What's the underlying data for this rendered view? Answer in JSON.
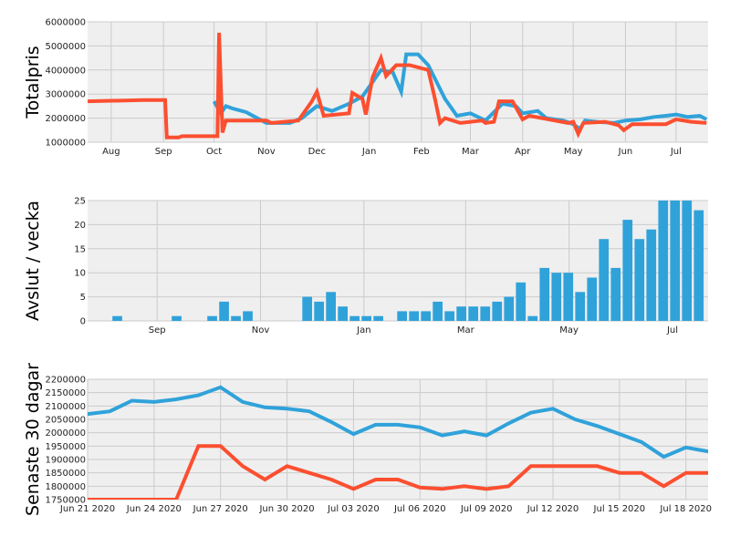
{
  "chart_data": [
    {
      "type": "line",
      "ylabel": "Totalpris",
      "ylim": [
        1000000,
        6000000
      ],
      "yticks": [
        "1000000",
        "2000000",
        "3000000",
        "4000000",
        "5000000",
        "6000000"
      ],
      "xlim": [
        "2019-07-18",
        "2020-07-20"
      ],
      "xtick_labels": [
        {
          "date": "2019-08-01",
          "label": "Aug"
        },
        {
          "date": "2019-09-01",
          "label": "Sep"
        },
        {
          "date": "2019-10-01",
          "label": "Oct"
        },
        {
          "date": "2019-11-01",
          "label": "Nov"
        },
        {
          "date": "2019-12-01",
          "label": "Dec"
        },
        {
          "date": "2020-01-01",
          "label": "Jan"
        },
        {
          "date": "2020-02-01",
          "label": "Feb"
        },
        {
          "date": "2020-03-01",
          "label": "Mar"
        },
        {
          "date": "2020-04-01",
          "label": "Apr"
        },
        {
          "date": "2020-05-01",
          "label": "May"
        },
        {
          "date": "2020-06-01",
          "label": "Jun"
        },
        {
          "date": "2020-07-01",
          "label": "Jul"
        }
      ],
      "series": [
        {
          "color": "#30a2da",
          "points": [
            [
              "2019-10-01",
              2700000
            ],
            [
              "2019-10-05",
              2200000
            ],
            [
              "2019-10-08",
              2500000
            ],
            [
              "2019-10-12",
              2400000
            ],
            [
              "2019-10-20",
              2250000
            ],
            [
              "2019-11-01",
              1800000
            ],
            [
              "2019-11-15",
              1800000
            ],
            [
              "2019-11-22",
              2000000
            ],
            [
              "2019-12-01",
              2500000
            ],
            [
              "2019-12-10",
              2300000
            ],
            [
              "2019-12-20",
              2600000
            ],
            [
              "2019-12-28",
              2900000
            ],
            [
              "2020-01-03",
              3500000
            ],
            [
              "2020-01-08",
              4000000
            ],
            [
              "2020-01-15",
              3900000
            ],
            [
              "2020-01-20",
              3100000
            ],
            [
              "2020-01-23",
              4650000
            ],
            [
              "2020-01-30",
              4650000
            ],
            [
              "2020-02-05",
              4200000
            ],
            [
              "2020-02-10",
              3500000
            ],
            [
              "2020-02-15",
              2800000
            ],
            [
              "2020-02-22",
              2100000
            ],
            [
              "2020-03-01",
              2200000
            ],
            [
              "2020-03-10",
              1900000
            ],
            [
              "2020-03-20",
              2600000
            ],
            [
              "2020-03-28",
              2500000
            ],
            [
              "2020-04-01",
              2200000
            ],
            [
              "2020-04-10",
              2300000
            ],
            [
              "2020-04-15",
              2000000
            ],
            [
              "2020-04-25",
              1900000
            ],
            [
              "2020-05-01",
              1750000
            ],
            [
              "2020-05-05",
              1550000
            ],
            [
              "2020-05-08",
              1900000
            ],
            [
              "2020-05-15",
              1850000
            ],
            [
              "2020-05-25",
              1800000
            ],
            [
              "2020-06-01",
              1900000
            ],
            [
              "2020-06-10",
              1950000
            ],
            [
              "2020-06-18",
              2050000
            ],
            [
              "2020-06-25",
              2100000
            ],
            [
              "2020-07-01",
              2150000
            ],
            [
              "2020-07-08",
              2050000
            ],
            [
              "2020-07-15",
              2100000
            ],
            [
              "2020-07-19",
              1950000
            ]
          ]
        },
        {
          "color": "#fc4f30",
          "points": [
            [
              "2019-07-18",
              2700000
            ],
            [
              "2019-08-20",
              2750000
            ],
            [
              "2019-09-02",
              2750000
            ],
            [
              "2019-09-03",
              1200000
            ],
            [
              "2019-09-10",
              1200000
            ],
            [
              "2019-09-12",
              1250000
            ],
            [
              "2019-10-03",
              1250000
            ],
            [
              "2019-10-04",
              5550000
            ],
            [
              "2019-10-06",
              1400000
            ],
            [
              "2019-10-08",
              1900000
            ],
            [
              "2019-11-01",
              1900000
            ],
            [
              "2019-11-04",
              1800000
            ],
            [
              "2019-11-20",
              1900000
            ],
            [
              "2019-11-28",
              2700000
            ],
            [
              "2019-12-01",
              3100000
            ],
            [
              "2019-12-05",
              2100000
            ],
            [
              "2019-12-20",
              2200000
            ],
            [
              "2019-12-22",
              3050000
            ],
            [
              "2019-12-28",
              2800000
            ],
            [
              "2019-12-30",
              2150000
            ],
            [
              "2020-01-03",
              3700000
            ],
            [
              "2020-01-08",
              4500000
            ],
            [
              "2020-01-11",
              3750000
            ],
            [
              "2020-01-17",
              4200000
            ],
            [
              "2020-01-25",
              4200000
            ],
            [
              "2020-02-05",
              4000000
            ],
            [
              "2020-02-09",
              2800000
            ],
            [
              "2020-02-12",
              1800000
            ],
            [
              "2020-02-15",
              2000000
            ],
            [
              "2020-02-24",
              1800000
            ],
            [
              "2020-03-08",
              1900000
            ],
            [
              "2020-03-10",
              1800000
            ],
            [
              "2020-03-15",
              1850000
            ],
            [
              "2020-03-18",
              2700000
            ],
            [
              "2020-03-26",
              2700000
            ],
            [
              "2020-04-01",
              1950000
            ],
            [
              "2020-04-05",
              2100000
            ],
            [
              "2020-04-20",
              1900000
            ],
            [
              "2020-04-28",
              1800000
            ],
            [
              "2020-05-01",
              1850000
            ],
            [
              "2020-05-04",
              1350000
            ],
            [
              "2020-05-07",
              1800000
            ],
            [
              "2020-05-20",
              1850000
            ],
            [
              "2020-05-28",
              1700000
            ],
            [
              "2020-05-31",
              1500000
            ],
            [
              "2020-06-05",
              1750000
            ],
            [
              "2020-06-25",
              1750000
            ],
            [
              "2020-07-01",
              1950000
            ],
            [
              "2020-07-10",
              1850000
            ],
            [
              "2020-07-19",
              1800000
            ]
          ]
        }
      ]
    },
    {
      "type": "bar",
      "ylabel": "Avslut / vecka",
      "ylim": [
        0,
        25
      ],
      "yticks": [
        "0",
        "5",
        "10",
        "15",
        "20",
        "25"
      ],
      "xlim": [
        "2019-07-22",
        "2020-07-22"
      ],
      "xtick_labels": [
        {
          "date": "2019-09-01",
          "label": "Sep"
        },
        {
          "date": "2019-11-01",
          "label": "Nov"
        },
        {
          "date": "2020-01-01",
          "label": "Jan"
        },
        {
          "date": "2020-03-01",
          "label": "Mar"
        },
        {
          "date": "2020-05-01",
          "label": "May"
        },
        {
          "date": "2020-07-01",
          "label": "Jul"
        }
      ],
      "bars": [
        [
          "2019-08-05",
          1
        ],
        [
          "2019-09-09",
          1
        ],
        [
          "2019-09-30",
          1
        ],
        [
          "2019-10-07",
          4
        ],
        [
          "2019-10-14",
          1
        ],
        [
          "2019-10-21",
          2
        ],
        [
          "2019-11-25",
          5
        ],
        [
          "2019-12-02",
          4
        ],
        [
          "2019-12-09",
          6
        ],
        [
          "2019-12-16",
          3
        ],
        [
          "2019-12-23",
          1
        ],
        [
          "2019-12-30",
          1
        ],
        [
          "2020-01-06",
          1
        ],
        [
          "2020-01-20",
          2
        ],
        [
          "2020-01-27",
          2
        ],
        [
          "2020-02-03",
          2
        ],
        [
          "2020-02-10",
          4
        ],
        [
          "2020-02-17",
          2
        ],
        [
          "2020-02-24",
          3
        ],
        [
          "2020-03-02",
          3
        ],
        [
          "2020-03-09",
          3
        ],
        [
          "2020-03-16",
          4
        ],
        [
          "2020-03-23",
          5
        ],
        [
          "2020-03-30",
          8
        ],
        [
          "2020-04-06",
          1
        ],
        [
          "2020-04-13",
          11
        ],
        [
          "2020-04-20",
          10
        ],
        [
          "2020-04-27",
          10
        ],
        [
          "2020-05-04",
          6
        ],
        [
          "2020-05-11",
          9
        ],
        [
          "2020-05-18",
          17
        ],
        [
          "2020-05-25",
          11
        ],
        [
          "2020-06-01",
          21
        ],
        [
          "2020-06-08",
          17
        ],
        [
          "2020-06-15",
          19
        ],
        [
          "2020-06-22",
          25
        ],
        [
          "2020-06-29",
          25
        ],
        [
          "2020-07-06",
          25
        ],
        [
          "2020-07-13",
          23
        ]
      ]
    },
    {
      "type": "line",
      "ylabel": "Senaste 30 dagar",
      "ylim": [
        1750000,
        2200000
      ],
      "yticks": [
        "1750000",
        "1800000",
        "1850000",
        "1900000",
        "1950000",
        "2000000",
        "2050000",
        "2100000",
        "2150000",
        "2200000"
      ],
      "xlim": [
        "2020-06-21",
        "2020-07-19"
      ],
      "xtick_labels": [
        {
          "date": "2020-06-21",
          "label": "Jun 21 2020"
        },
        {
          "date": "2020-06-24",
          "label": "Jun 24 2020"
        },
        {
          "date": "2020-06-27",
          "label": "Jun 27 2020"
        },
        {
          "date": "2020-06-30",
          "label": "Jun 30 2020"
        },
        {
          "date": "2020-07-03",
          "label": "Jul 03 2020"
        },
        {
          "date": "2020-07-06",
          "label": "Jul 06 2020"
        },
        {
          "date": "2020-07-09",
          "label": "Jul 09 2020"
        },
        {
          "date": "2020-07-12",
          "label": "Jul 12 2020"
        },
        {
          "date": "2020-07-15",
          "label": "Jul 15 2020"
        },
        {
          "date": "2020-07-18",
          "label": "Jul 18 2020"
        }
      ],
      "series": [
        {
          "color": "#30a2da",
          "points": [
            [
              "2020-06-21",
              2070000
            ],
            [
              "2020-06-22",
              2080000
            ],
            [
              "2020-06-23",
              2120000
            ],
            [
              "2020-06-24",
              2115000
            ],
            [
              "2020-06-25",
              2125000
            ],
            [
              "2020-06-26",
              2140000
            ],
            [
              "2020-06-27",
              2170000
            ],
            [
              "2020-06-28",
              2115000
            ],
            [
              "2020-06-29",
              2095000
            ],
            [
              "2020-06-30",
              2090000
            ],
            [
              "2020-07-01",
              2080000
            ],
            [
              "2020-07-02",
              2040000
            ],
            [
              "2020-07-03",
              1995000
            ],
            [
              "2020-07-04",
              2030000
            ],
            [
              "2020-07-05",
              2030000
            ],
            [
              "2020-07-06",
              2020000
            ],
            [
              "2020-07-07",
              1990000
            ],
            [
              "2020-07-08",
              2005000
            ],
            [
              "2020-07-09",
              1990000
            ],
            [
              "2020-07-10",
              2035000
            ],
            [
              "2020-07-11",
              2075000
            ],
            [
              "2020-07-12",
              2090000
            ],
            [
              "2020-07-13",
              2050000
            ],
            [
              "2020-07-14",
              2025000
            ],
            [
              "2020-07-15",
              1995000
            ],
            [
              "2020-07-16",
              1965000
            ],
            [
              "2020-07-17",
              1910000
            ],
            [
              "2020-07-18",
              1945000
            ],
            [
              "2020-07-19",
              1930000
            ],
            [
              "2020-07-20",
              1905000
            ]
          ]
        },
        {
          "color": "#fc4f30",
          "points": [
            [
              "2020-06-21",
              1750000
            ],
            [
              "2020-06-22",
              1750000
            ],
            [
              "2020-06-23",
              1750000
            ],
            [
              "2020-06-24",
              1750000
            ],
            [
              "2020-06-25",
              1750000
            ],
            [
              "2020-06-26",
              1950000
            ],
            [
              "2020-06-27",
              1950000
            ],
            [
              "2020-06-28",
              1875000
            ],
            [
              "2020-06-29",
              1825000
            ],
            [
              "2020-06-30",
              1875000
            ],
            [
              "2020-07-01",
              1850000
            ],
            [
              "2020-07-02",
              1825000
            ],
            [
              "2020-07-03",
              1790000
            ],
            [
              "2020-07-04",
              1825000
            ],
            [
              "2020-07-05",
              1825000
            ],
            [
              "2020-07-06",
              1795000
            ],
            [
              "2020-07-07",
              1790000
            ],
            [
              "2020-07-08",
              1800000
            ],
            [
              "2020-07-09",
              1790000
            ],
            [
              "2020-07-10",
              1800000
            ],
            [
              "2020-07-11",
              1875000
            ],
            [
              "2020-07-12",
              1875000
            ],
            [
              "2020-07-13",
              1875000
            ],
            [
              "2020-07-14",
              1875000
            ],
            [
              "2020-07-15",
              1850000
            ],
            [
              "2020-07-16",
              1850000
            ],
            [
              "2020-07-17",
              1800000
            ],
            [
              "2020-07-18",
              1850000
            ],
            [
              "2020-07-19",
              1850000
            ],
            [
              "2020-07-20",
              1850000
            ]
          ]
        }
      ]
    }
  ]
}
